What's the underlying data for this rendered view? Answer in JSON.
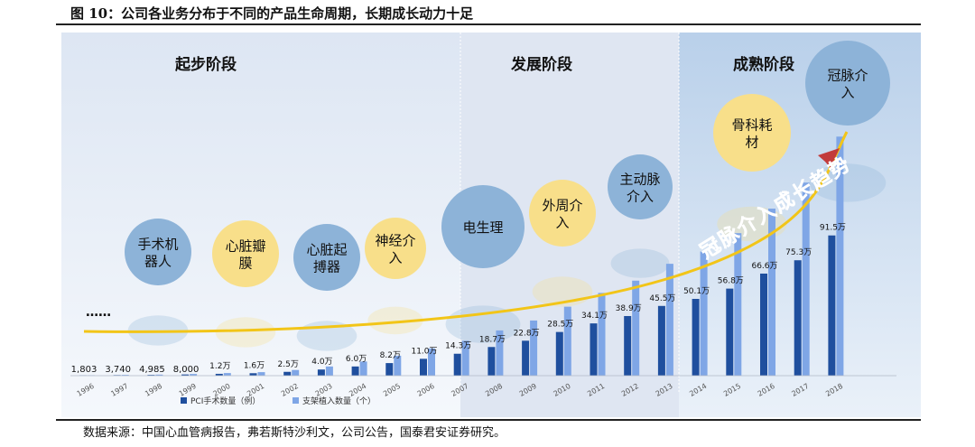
{
  "figure": {
    "title": "图 10：公司各业务分布于不同的产品生命周期，长期成长动力十足",
    "source": "数据来源：中国心血管病报告，弗若斯特沙利文，公司公告，国泰君安证券研究。"
  },
  "chart_data": {
    "type": "bar",
    "categories": [
      "1996",
      "1997",
      "1998",
      "1999",
      "2000",
      "2001",
      "2002",
      "2003",
      "2004",
      "2005",
      "2006",
      "2007",
      "2008",
      "2009",
      "2010",
      "2011",
      "2012",
      "2013",
      "2014",
      "2015",
      "2016",
      "2017",
      "2018"
    ],
    "series": [
      {
        "name": "PCI手术数量（例）",
        "values": [
          1803,
          3740,
          4985,
          8000,
          12000,
          16000,
          25000,
          40000,
          60000,
          82000,
          110000,
          143000,
          187000,
          228000,
          285000,
          341000,
          389000,
          455000,
          501000,
          568000,
          666000,
          753000,
          915000
        ],
        "color": "#1f4f9e"
      },
      {
        "name": "支架植入数量（个）",
        "values": [
          2500,
          5200,
          7000,
          11000,
          17000,
          23000,
          37000,
          60000,
          92000,
          130000,
          178000,
          228000,
          295000,
          360000,
          450000,
          540000,
          620000,
          730000,
          810000,
          930000,
          1090000,
          1260000,
          1560000
        ],
        "color": "#7fa6e6"
      }
    ],
    "data_labels": [
      "1,803",
      "3,740",
      "4,985",
      "8,000",
      "1.2万",
      "1.6万",
      "2.5万",
      "4.0万",
      "6.0万",
      "8.2万",
      "11.0万",
      "14.3万",
      "18.7万",
      "22.8万",
      "28.5万",
      "34.1万",
      "38.9万",
      "45.5万",
      "50.1万",
      "56.8万",
      "66.6万",
      "75.3万",
      "91.5万"
    ],
    "ylim": [
      0,
      1650000
    ],
    "legend_position": "bottom",
    "annotations": {
      "stages": [
        "起步阶段",
        "发展阶段",
        "成熟阶段"
      ],
      "ellipsis": "……",
      "trend_label": "冠脉介入成长趋势",
      "bubbles": [
        {
          "text": "手术机器人",
          "lines": [
            "手术机",
            "器人"
          ],
          "color": "#8db3d8"
        },
        {
          "text": "心脏瓣膜",
          "lines": [
            "心脏瓣",
            "膜"
          ],
          "color": "#f8df8a"
        },
        {
          "text": "心脏起搏器",
          "lines": [
            "心脏起",
            "搏器"
          ],
          "color": "#8db3d8"
        },
        {
          "text": "神经介入",
          "lines": [
            "神经介",
            "入"
          ],
          "color": "#f8df8a"
        },
        {
          "text": "电生理",
          "lines": [
            "电生理"
          ],
          "color": "#8db3d8"
        },
        {
          "text": "外周介入",
          "lines": [
            "外周介",
            "入"
          ],
          "color": "#f8df8a"
        },
        {
          "text": "主动脉介入",
          "lines": [
            "主动脉",
            "介入"
          ],
          "color": "#8db3d8"
        },
        {
          "text": "骨科耗材",
          "lines": [
            "骨科耗",
            "材"
          ],
          "color": "#f8df8a"
        },
        {
          "text": "冠脉介入",
          "lines": [
            "冠脉介",
            "入"
          ],
          "color": "#8db3d8"
        }
      ]
    }
  }
}
